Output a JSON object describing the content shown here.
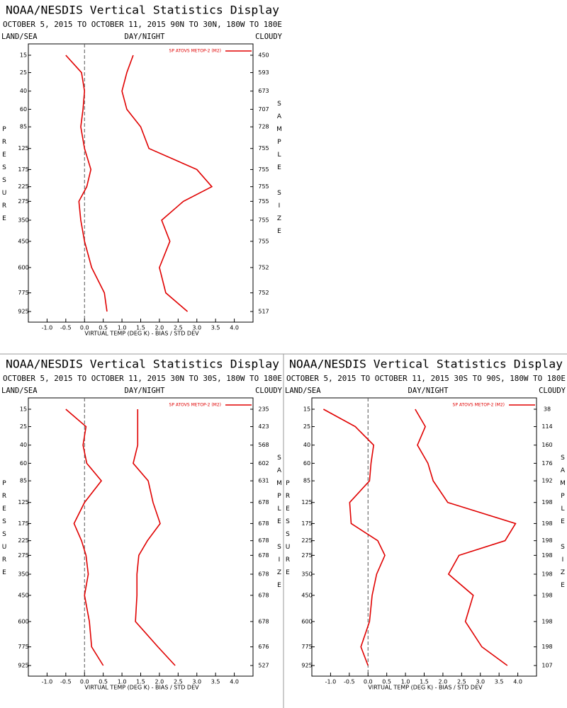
{
  "chart_data": [
    {
      "type": "line",
      "title": "NOAA/NESDIS Vertical Statistics Display",
      "subtitle": "OCTOBER 5, 2015 TO OCTOBER 11, 2015 90N TO 30N, 180W TO 180E",
      "left_header": "LAND/SEA",
      "center_header": "DAY/NIGHT",
      "right_header": "CLOUDY",
      "legend": "SP ATOVS METOP-2 (M2)",
      "x_label": "VIRTUAL TEMP (DEG K) - BIAS / STD DEV",
      "y_label": "PRESSURE",
      "y2_label": "SAMPLE SIZE",
      "y": [
        15,
        25,
        40,
        60,
        85,
        125,
        175,
        225,
        275,
        350,
        450,
        600,
        775,
        925
      ],
      "sample_size": [
        450,
        593,
        673,
        707,
        728,
        755,
        755,
        755,
        755,
        755,
        755,
        752,
        752,
        517
      ],
      "series": [
        {
          "color": "#e00000",
          "values": [
            -0.5,
            -0.08,
            0.0,
            -0.04,
            -0.1,
            0.0,
            0.17,
            0.06,
            -0.15,
            -0.1,
            0.0,
            0.19,
            0.53,
            0.6
          ]
        },
        {
          "color": "#e00000",
          "values": [
            1.3,
            1.13,
            1.0,
            1.13,
            1.5,
            1.72,
            3.0,
            3.4,
            2.64,
            2.06,
            2.28,
            2.0,
            2.17,
            2.75
          ]
        }
      ],
      "xlim": [
        -1.5,
        4.5
      ],
      "xticks": [
        {
          "value": -1,
          "label": "-1.0"
        },
        -0.5,
        {
          "value": 0,
          "label": "0.0"
        },
        0.5,
        {
          "value": 1,
          "label": "1.0"
        },
        1.5,
        {
          "value": 2,
          "label": "2.0"
        },
        2.5,
        {
          "value": 3,
          "label": "3.0"
        },
        3.5,
        {
          "value": 4,
          "label": "4.0"
        }
      ]
    },
    {
      "type": "line",
      "title": "NOAA/NESDIS Vertical Statistics Display",
      "subtitle": "OCTOBER 5, 2015 TO OCTOBER 11, 2015 30N TO 30S, 180W TO 180E",
      "left_header": "LAND/SEA",
      "center_header": "DAY/NIGHT",
      "right_header": "CLOUDY",
      "legend": "SP ATOVS METOP-2 (M2)",
      "x_label": "VIRTUAL TEMP (DEG K) - BIAS / STD DEV",
      "y_label": "PRESSURE",
      "y2_label": "SAMPLE SIZE",
      "y": [
        15,
        25,
        40,
        60,
        85,
        125,
        175,
        225,
        275,
        350,
        450,
        600,
        775,
        925
      ],
      "sample_size": [
        235,
        423,
        568,
        602,
        631,
        678,
        678,
        678,
        678,
        678,
        678,
        678,
        676,
        527
      ],
      "series": [
        {
          "color": "#e00000",
          "values": [
            -0.5,
            0.04,
            -0.04,
            0.06,
            0.45,
            0.0,
            -0.28,
            -0.08,
            0.04,
            0.1,
            0.0,
            0.13,
            0.19,
            0.5
          ]
        },
        {
          "color": "#e00000",
          "values": [
            1.42,
            1.42,
            1.42,
            1.3,
            1.7,
            1.83,
            2.02,
            1.68,
            1.45,
            1.4,
            1.4,
            1.36,
            1.96,
            2.42
          ]
        }
      ],
      "xlim": [
        -1.5,
        4.5
      ],
      "xticks": [
        {
          "value": -1,
          "label": "-1.0"
        },
        -0.5,
        {
          "value": 0,
          "label": "0.0"
        },
        0.5,
        {
          "value": 1,
          "label": "1.0"
        },
        1.5,
        {
          "value": 2,
          "label": "2.0"
        },
        2.5,
        {
          "value": 3,
          "label": "3.0"
        },
        3.5,
        {
          "value": 4,
          "label": "4.0"
        }
      ]
    },
    {
      "type": "line",
      "title": "NOAA/NESDIS Vertical Statistics Display",
      "subtitle": "OCTOBER 5, 2015 TO OCTOBER 11, 2015 30S TO 90S, 180W TO 180E",
      "left_header": "LAND/SEA",
      "center_header": "DAY/NIGHT",
      "right_header": "CLOUDY",
      "legend": "SP ATOVS METOP-2 (M2)",
      "x_label": "VIRTUAL TEMP (DEG K) - BIAS / STD DEV",
      "y_label": "PRESSURE",
      "y2_label": "SAMPLE SIZE",
      "y": [
        15,
        25,
        40,
        60,
        85,
        125,
        175,
        225,
        275,
        350,
        450,
        600,
        775,
        925
      ],
      "sample_size": [
        38,
        114,
        160,
        176,
        192,
        198,
        198,
        198,
        198,
        198,
        198,
        198,
        198,
        107
      ],
      "series": [
        {
          "color": "#e00000",
          "values": [
            -1.19,
            -0.34,
            0.15,
            0.08,
            0.04,
            -0.49,
            -0.45,
            0.26,
            0.45,
            0.23,
            0.11,
            0.04,
            -0.19,
            0.0
          ]
        },
        {
          "color": "#e00000",
          "values": [
            1.26,
            1.53,
            1.32,
            1.6,
            1.74,
            2.13,
            3.94,
            3.66,
            2.43,
            2.15,
            2.81,
            2.6,
            3.04,
            3.72
          ]
        }
      ],
      "xlim": [
        -1.5,
        4.5
      ],
      "xticks": [
        {
          "value": -1,
          "label": "-1.0"
        },
        -0.5,
        {
          "value": 0,
          "label": "0.0"
        },
        0.5,
        {
          "value": 1,
          "label": "1.0"
        },
        1.5,
        {
          "value": 2,
          "label": "2.0"
        },
        2.5,
        {
          "value": 3,
          "label": "3.0"
        },
        3.5,
        {
          "value": 4,
          "label": "4.0"
        }
      ]
    }
  ]
}
